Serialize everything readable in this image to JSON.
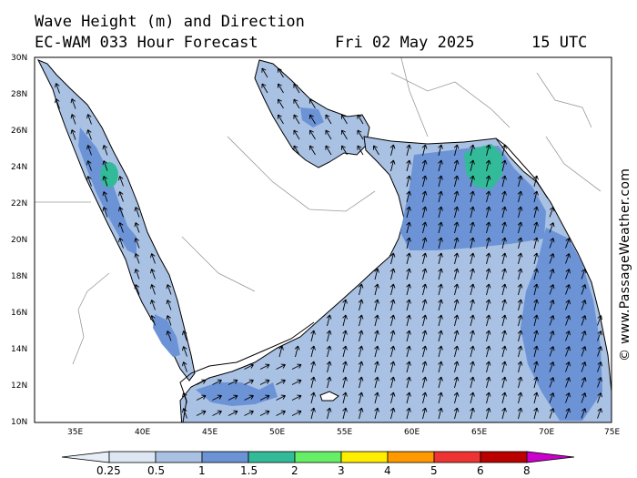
{
  "header": {
    "title_line1": "Wave Height (m) and Direction",
    "model": "EC-WAM 033 Hour Forecast",
    "date": "Fri 02 May 2025",
    "time": "15 UTC"
  },
  "credit": "© www.PassageWeather.com",
  "map": {
    "region": "Red Sea - Arabian Sea",
    "lon_range": [
      32.5,
      75
    ],
    "lat_range": [
      10,
      30
    ],
    "lat_ticks": [
      "30N",
      "28N",
      "26N",
      "24N",
      "22N",
      "20N",
      "18N",
      "16N",
      "14N",
      "12N",
      "10N"
    ],
    "lon_ticks": [
      "35E",
      "40E",
      "45E",
      "50E",
      "55E",
      "60E",
      "65E",
      "70E",
      "75E"
    ],
    "dominant_direction": "waves moving toward north / north-northwest",
    "max_band": "2-3 m near 37.5E 23.5N and 65E 24N",
    "colors": {
      "land": "#ffffff",
      "coast": "#000000"
    }
  },
  "legend": {
    "labels": [
      "0.25",
      "0.5",
      "1",
      "1.5",
      "2",
      "3",
      "4",
      "5",
      "6",
      "8"
    ],
    "colors": [
      "#e8eef8",
      "#dde7f4",
      "#a9c1e3",
      "#6b93d6",
      "#33bb99",
      "#66ee66",
      "#ffee00",
      "#ff9900",
      "#ee3333",
      "#bb0000",
      "#cc00cc"
    ]
  }
}
